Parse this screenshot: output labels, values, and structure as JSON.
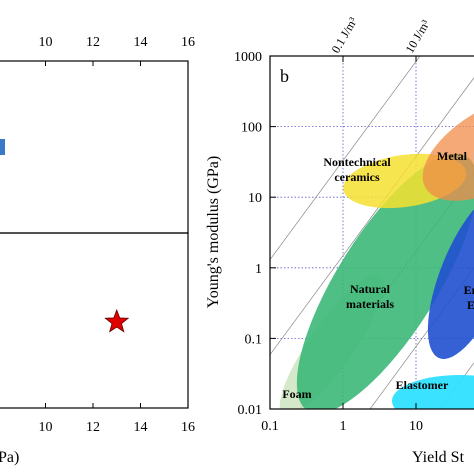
{
  "chart_data": [
    {
      "type": "scatter",
      "panel": "left",
      "x_tick_labels": [
        "10",
        "12",
        "14",
        "16"
      ],
      "x_ticks": [
        10,
        12,
        14,
        16
      ],
      "xlim": [
        8,
        16
      ],
      "xlabel_visible": "Pa)",
      "points": [
        {
          "name": "",
          "x": 13,
          "y_panel": "lower",
          "marker": "star",
          "color": "#e00000"
        }
      ],
      "partial_marker": {
        "panel": "upper",
        "marker": "rect",
        "color": "#3a78c8"
      }
    },
    {
      "type": "area",
      "panel": "b",
      "panel_label": "b",
      "xscale": "log",
      "yscale": "log",
      "xlim": [
        0.1,
        1000
      ],
      "ylim": [
        0.01,
        1000
      ],
      "x_tick_labels": [
        "0.1",
        "1",
        "10"
      ],
      "y_tick_labels": [
        "0.01",
        "0.1",
        "1",
        "10",
        "100",
        "1000"
      ],
      "x_ticks": [
        0.1,
        1,
        10
      ],
      "y_ticks": [
        0.01,
        0.1,
        1,
        10,
        100,
        1000
      ],
      "ylabel": "Young's modulus (GPa)",
      "xlabel_visible": "Yield St",
      "grid": true,
      "energy_lines": [
        {
          "label": "0.1 J/m³"
        },
        {
          "label": "10 J/m³"
        }
      ],
      "regions": [
        {
          "label": "Metal",
          "color": "#f08c4a"
        },
        {
          "label": "Nontechnical ceramics",
          "label_lines": [
            "Nontechnical",
            "ceramics"
          ],
          "color": "#f5e030"
        },
        {
          "label": "Natural materials",
          "label_lines": [
            "Natural",
            "materials"
          ],
          "color": "#3cb878"
        },
        {
          "label": "Elastomer",
          "color": "#30e0ff"
        },
        {
          "label": "Foam",
          "color": "#c8e0b8"
        },
        {
          "label": "En",
          "label_lines": [
            "En",
            "E"
          ],
          "color": "#2050d0"
        }
      ]
    }
  ]
}
